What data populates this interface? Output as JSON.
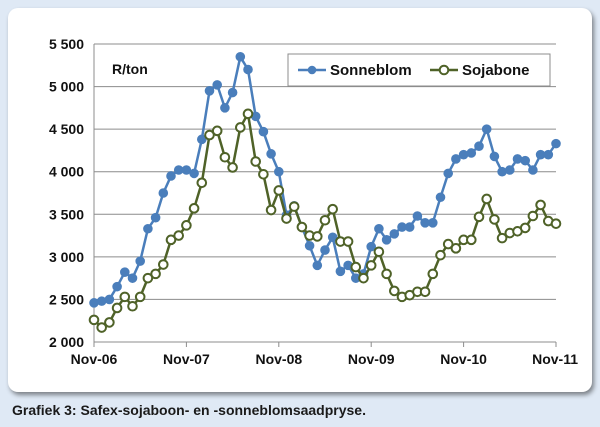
{
  "caption": "Grafiek 3: Safex-sojaboon- en -sonneblomsaadpryse.",
  "chart_data": {
    "type": "line",
    "title": "",
    "ylabel": "R/ton",
    "xlabel": "",
    "ylim": [
      2000,
      5500
    ],
    "y_ticks": [
      "2 000",
      "2 500",
      "3 000",
      "3 500",
      "4 000",
      "4 500",
      "5 000",
      "5 500"
    ],
    "y_tick_values": [
      2000,
      2500,
      3000,
      3500,
      4000,
      4500,
      5000,
      5500
    ],
    "x_tick_labels": [
      "Nov-06",
      "Nov-07",
      "Nov-08",
      "Nov-09",
      "Nov-10",
      "Nov-11"
    ],
    "grid": "horizontal",
    "legend_position": "top-right",
    "series": [
      {
        "name": "Sonneblom",
        "color": "#4a7ebb",
        "marker": "filled-circle",
        "values": [
          2460,
          2480,
          2500,
          2650,
          2820,
          2750,
          2950,
          3330,
          3460,
          3750,
          3950,
          4020,
          4020,
          3980,
          4380,
          4950,
          5020,
          4750,
          4930,
          5350,
          5200,
          4650,
          4470,
          4210,
          4000,
          3490,
          3600,
          3350,
          3130,
          2900,
          3080,
          3230,
          2830,
          2900,
          2750,
          2800,
          3120,
          3330,
          3200,
          3270,
          3350,
          3350,
          3480,
          3400,
          3400,
          3700,
          3980,
          4150,
          4200,
          4220,
          4300,
          4500,
          4180,
          4000,
          4020,
          4150,
          4130,
          4020,
          4200,
          4200,
          4330
        ]
      },
      {
        "name": "Sojabone",
        "color": "#4f6228",
        "marker": "open-circle",
        "values": [
          2260,
          2170,
          2230,
          2400,
          2530,
          2420,
          2530,
          2750,
          2800,
          2910,
          3200,
          3250,
          3370,
          3570,
          3870,
          4430,
          4480,
          4170,
          4050,
          4520,
          4680,
          4120,
          3970,
          3550,
          3780,
          3450,
          3590,
          3350,
          3250,
          3240,
          3430,
          3560,
          3180,
          3180,
          2880,
          2750,
          2900,
          3060,
          2800,
          2600,
          2530,
          2550,
          2590,
          2590,
          2800,
          3020,
          3150,
          3100,
          3200,
          3200,
          3470,
          3680,
          3440,
          3220,
          3280,
          3300,
          3340,
          3480,
          3610,
          3420,
          3390
        ]
      }
    ]
  }
}
